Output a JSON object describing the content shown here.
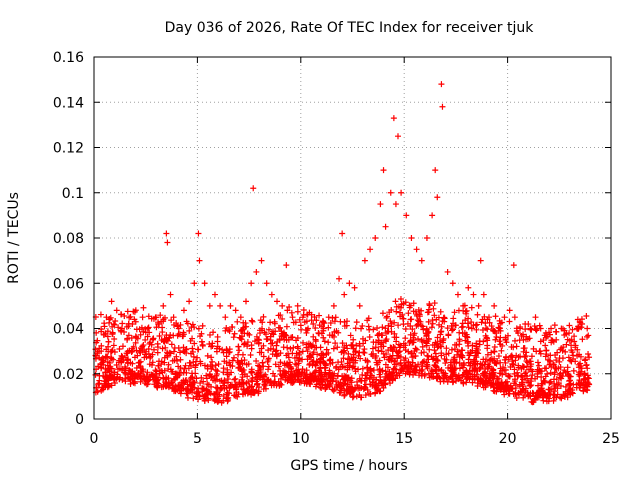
{
  "chart_data": {
    "type": "scatter",
    "title": "Day 036 of 2026, Rate Of TEC Index for receiver tjuk",
    "xlabel": "GPS time / hours",
    "ylabel": "ROTI / TECUs",
    "xlim": [
      0,
      25
    ],
    "ylim": [
      0,
      0.16
    ],
    "x_ticks": [
      0,
      5,
      10,
      15,
      20,
      25
    ],
    "x_tick_labels": [
      "0",
      "5",
      "10",
      "15",
      "20",
      "25"
    ],
    "y_ticks": [
      0,
      0.02,
      0.04,
      0.06,
      0.08,
      0.1,
      0.12,
      0.14,
      0.16
    ],
    "y_tick_labels": [
      "0",
      "0.02",
      "0.04",
      "0.06",
      "0.08",
      "0.1",
      "0.12",
      "0.14",
      "0.16"
    ],
    "grid": true,
    "marker": "+",
    "marker_color": "#ff0000",
    "series": [
      {
        "name": "ROTI",
        "x": [
          0.1,
          0.35,
          0.6,
          0.85,
          1.1,
          1.35,
          1.6,
          1.85,
          2.1,
          2.35,
          2.6,
          2.85,
          3.1,
          3.35,
          3.5,
          3.55,
          3.7,
          3.85,
          4.1,
          4.35,
          4.6,
          4.85,
          5.05,
          5.1,
          5.35,
          5.6,
          5.85,
          6.1,
          6.35,
          6.6,
          6.85,
          7.1,
          7.35,
          7.6,
          7.7,
          7.85,
          8.1,
          8.35,
          8.6,
          8.85,
          9.1,
          9.3,
          9.35,
          9.6,
          9.85,
          10.1,
          10.35,
          10.6,
          10.85,
          11.1,
          11.35,
          11.6,
          11.85,
          12.0,
          12.1,
          12.35,
          12.6,
          12.85,
          13.1,
          13.35,
          13.6,
          13.85,
          14.0,
          14.1,
          14.35,
          14.5,
          14.6,
          14.7,
          14.85,
          15.1,
          15.35,
          15.6,
          15.85,
          16.1,
          16.35,
          16.5,
          16.6,
          16.8,
          16.85,
          17.1,
          17.35,
          17.6,
          17.85,
          18.1,
          18.35,
          18.6,
          18.7,
          18.85,
          19.1,
          19.35,
          19.6,
          19.85,
          20.1,
          20.3,
          20.35,
          20.6,
          20.85,
          21.1,
          21.35,
          21.6,
          21.85,
          22.1,
          22.35,
          22.6,
          22.85,
          23.1,
          23.35,
          23.6,
          23.85
        ],
        "y": [
          0.022,
          0.03,
          0.045,
          0.052,
          0.048,
          0.04,
          0.035,
          0.03,
          0.028,
          0.045,
          0.04,
          0.035,
          0.042,
          0.05,
          0.082,
          0.078,
          0.055,
          0.045,
          0.04,
          0.048,
          0.052,
          0.06,
          0.082,
          0.07,
          0.06,
          0.05,
          0.055,
          0.05,
          0.045,
          0.05,
          0.048,
          0.045,
          0.052,
          0.06,
          0.102,
          0.065,
          0.07,
          0.06,
          0.055,
          0.052,
          0.05,
          0.068,
          0.048,
          0.045,
          0.05,
          0.045,
          0.04,
          0.042,
          0.038,
          0.04,
          0.045,
          0.05,
          0.062,
          0.082,
          0.055,
          0.06,
          0.058,
          0.05,
          0.07,
          0.075,
          0.08,
          0.095,
          0.11,
          0.085,
          0.1,
          0.133,
          0.095,
          0.125,
          0.1,
          0.09,
          0.08,
          0.075,
          0.07,
          0.08,
          0.09,
          0.11,
          0.098,
          0.148,
          0.138,
          0.065,
          0.06,
          0.055,
          0.05,
          0.058,
          0.055,
          0.05,
          0.07,
          0.055,
          0.045,
          0.05,
          0.04,
          0.045,
          0.048,
          0.068,
          0.045,
          0.04,
          0.042,
          0.04,
          0.045,
          0.04,
          0.038,
          0.04,
          0.035,
          0.04,
          0.038,
          0.035,
          0.04,
          0.042,
          0.04
        ]
      }
    ]
  }
}
